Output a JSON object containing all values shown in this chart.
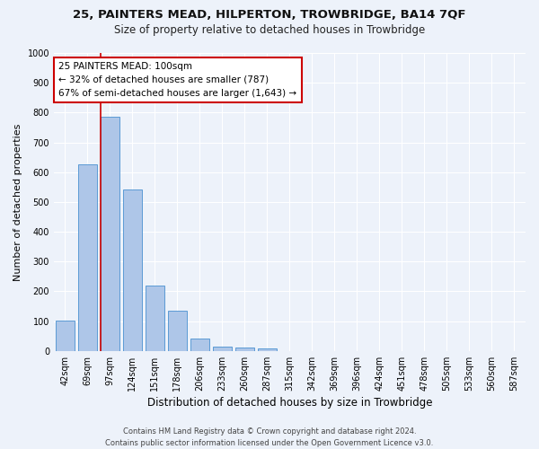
{
  "title1": "25, PAINTERS MEAD, HILPERTON, TROWBRIDGE, BA14 7QF",
  "title2": "Size of property relative to detached houses in Trowbridge",
  "xlabel": "Distribution of detached houses by size in Trowbridge",
  "ylabel": "Number of detached properties",
  "bar_labels": [
    "42sqm",
    "69sqm",
    "97sqm",
    "124sqm",
    "151sqm",
    "178sqm",
    "206sqm",
    "233sqm",
    "260sqm",
    "287sqm",
    "315sqm",
    "342sqm",
    "369sqm",
    "396sqm",
    "424sqm",
    "451sqm",
    "478sqm",
    "505sqm",
    "533sqm",
    "560sqm",
    "587sqm"
  ],
  "bar_values": [
    103,
    625,
    787,
    541,
    220,
    135,
    43,
    16,
    12,
    10,
    0,
    0,
    0,
    0,
    0,
    0,
    0,
    0,
    0,
    0,
    0
  ],
  "bar_color": "#aec6e8",
  "bar_edge_color": "#5b9bd5",
  "property_bar_index": 2,
  "annotation_text": "25 PAINTERS MEAD: 100sqm\n← 32% of detached houses are smaller (787)\n67% of semi-detached houses are larger (1,643) →",
  "annotation_box_color": "#ffffff",
  "annotation_box_edge_color": "#cc0000",
  "vline_color": "#cc0000",
  "ylim": [
    0,
    1000
  ],
  "yticks": [
    0,
    100,
    200,
    300,
    400,
    500,
    600,
    700,
    800,
    900,
    1000
  ],
  "footer1": "Contains HM Land Registry data © Crown copyright and database right 2024.",
  "footer2": "Contains public sector information licensed under the Open Government Licence v3.0.",
  "bg_color": "#edf2fa",
  "grid_color": "#ffffff",
  "title_fontsize": 9.5,
  "subtitle_fontsize": 8.5,
  "tick_fontsize": 7,
  "ylabel_fontsize": 8,
  "xlabel_fontsize": 8.5,
  "footer_fontsize": 6
}
